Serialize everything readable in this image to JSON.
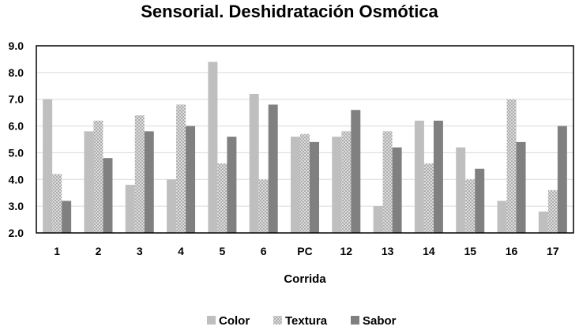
{
  "chart_data": {
    "type": "bar",
    "title": "Sensorial. Deshidratación Osmótica",
    "xlabel": "Corrida",
    "ylabel": "",
    "categories": [
      "1",
      "2",
      "3",
      "4",
      "5",
      "6",
      "PC",
      "12",
      "13",
      "14",
      "15",
      "16",
      "17"
    ],
    "series": [
      {
        "name": "Color",
        "color": "#bfbfbf",
        "pattern": "solid",
        "values": [
          7.0,
          5.8,
          3.8,
          4.0,
          8.4,
          7.2,
          5.6,
          5.6,
          3.0,
          6.2,
          5.2,
          3.2,
          2.8
        ]
      },
      {
        "name": "Textura",
        "color": "#d0d0d0",
        "pattern": "crosshatch",
        "values": [
          4.2,
          6.2,
          6.4,
          6.8,
          4.6,
          4.0,
          5.7,
          5.8,
          5.8,
          4.6,
          4.0,
          7.0,
          3.6
        ]
      },
      {
        "name": "Sabor",
        "color": "#808080",
        "pattern": "solid",
        "values": [
          3.2,
          4.8,
          5.8,
          6.0,
          5.6,
          6.8,
          5.4,
          6.6,
          5.2,
          6.2,
          4.4,
          5.4,
          6.0
        ]
      }
    ],
    "ylim": [
      2.0,
      9.0
    ],
    "yticks": [
      "2.0",
      "3.0",
      "4.0",
      "5.0",
      "6.0",
      "7.0",
      "8.0",
      "9.0"
    ],
    "grid": true,
    "legend_position": "bottom"
  }
}
